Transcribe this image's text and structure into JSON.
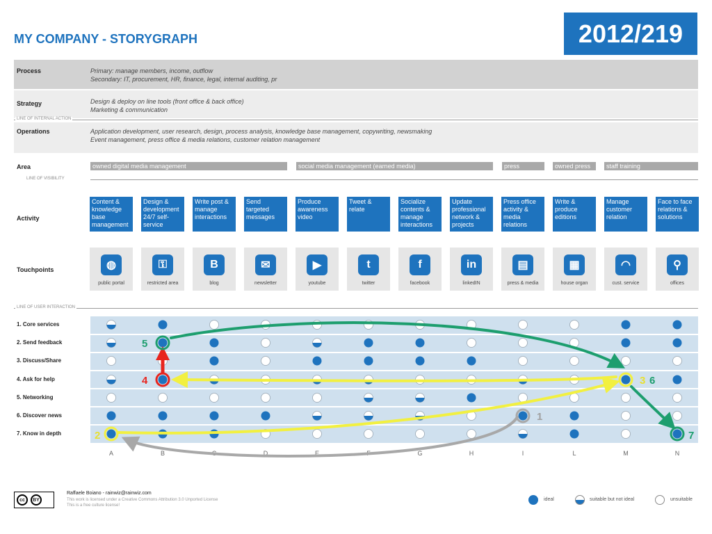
{
  "header": {
    "title": "MY COMPANY - STORYGRAPH",
    "badge": "2012/219"
  },
  "process": {
    "label": "Process",
    "line1": "Primary: manage members, income, outflow",
    "line2": "Secondary: IT, procurement, HR, finance, legal, internal auditing, pr"
  },
  "strategy": {
    "label": "Strategy",
    "line1": "Design & deploy on line tools (front office & back office)",
    "line2": "Marketing & communication"
  },
  "operations": {
    "label": "Operations",
    "line1": "Application development, user research, design, process analysis, knowledge base management, copywriting, newsmaking",
    "line2": "Event management, press office & media relations, customer relation management"
  },
  "lines": {
    "internal_action": "LINE OF INTERNAL ACTION",
    "visibility": "LINE OF VISIBILITY",
    "user_interaction": "LINE OF USER INTERACTION"
  },
  "area": {
    "label": "Area",
    "items": [
      "owned digital media management",
      "social media management (earned media)",
      "press",
      "owned press",
      "staff training"
    ]
  },
  "activity": {
    "label": "Activity",
    "items": [
      "Content & knowledge base management",
      "Design & development 24/7 self-service",
      "Write post & manage interactions",
      "Send targeted messages",
      "Produce awareness video",
      "Tweet & relate",
      "Socialize contents & manage interactions",
      "Update professional network & projects",
      "Press office activity & media relations",
      "Write & produce editions",
      "Manage customer relation",
      "Face to face relations & solutions"
    ]
  },
  "touchpoints": {
    "label": "Touchpoints",
    "items": [
      {
        "label": "public portal",
        "icon": "globe-icon",
        "glyph": "◍"
      },
      {
        "label": "restricted area",
        "icon": "key-icon",
        "glyph": "⚿"
      },
      {
        "label": "blog",
        "icon": "blogger-icon",
        "glyph": "B"
      },
      {
        "label": "newsletter",
        "icon": "envelope-icon",
        "glyph": "✉"
      },
      {
        "label": "youtube",
        "icon": "youtube-icon",
        "glyph": "▶"
      },
      {
        "label": "twitter",
        "icon": "twitter-icon",
        "glyph": "t"
      },
      {
        "label": "facebook",
        "icon": "facebook-icon",
        "glyph": "f"
      },
      {
        "label": "linkedIN",
        "icon": "linkedin-icon",
        "glyph": "in"
      },
      {
        "label": "press & media",
        "icon": "newspaper-icon",
        "glyph": "▤"
      },
      {
        "label": "house organ",
        "icon": "magazine-icon",
        "glyph": "▦"
      },
      {
        "label": "cust. service",
        "icon": "headset-icon",
        "glyph": "◠"
      },
      {
        "label": "offices",
        "icon": "map-pin-icon",
        "glyph": "⚲"
      }
    ]
  },
  "interactions": [
    "1. Core services",
    "2. Send feedback",
    "3. Discuss/Share",
    "4. Ask for help",
    "5. Networking",
    "6. Discover news",
    "7. Know in depth"
  ],
  "columns": [
    "A",
    "B",
    "C",
    "D",
    "E",
    "F",
    "G",
    "H",
    "I",
    "L",
    "M",
    "N"
  ],
  "matrix": [
    [
      "half",
      "full",
      "empty",
      "empty",
      "empty",
      "empty",
      "empty",
      "empty",
      "empty",
      "empty",
      "full",
      "full"
    ],
    [
      "half",
      "full",
      "full",
      "empty",
      "half",
      "full",
      "full",
      "empty",
      "empty",
      "empty",
      "full",
      "full"
    ],
    [
      "empty",
      "empty",
      "full",
      "empty",
      "full",
      "full",
      "full",
      "full",
      "empty",
      "empty",
      "empty",
      "empty"
    ],
    [
      "half",
      "full",
      "half",
      "empty",
      "half",
      "half",
      "empty",
      "empty",
      "half",
      "empty",
      "full",
      "full"
    ],
    [
      "empty",
      "empty",
      "empty",
      "empty",
      "empty",
      "half",
      "half",
      "full",
      "empty",
      "empty",
      "empty",
      "empty"
    ],
    [
      "full",
      "full",
      "full",
      "full",
      "half",
      "half",
      "half",
      "empty",
      "full",
      "full",
      "empty",
      "empty"
    ],
    [
      "full",
      "full",
      "full",
      "empty",
      "empty",
      "empty",
      "empty",
      "empty",
      "half",
      "full",
      "empty",
      "full"
    ]
  ],
  "path_labels": [
    {
      "text": "1",
      "color": "#a0a0a0"
    },
    {
      "text": "2",
      "color": "#e8e030"
    },
    {
      "text": "3",
      "color": "#e8e030"
    },
    {
      "text": "4",
      "color": "#e8251e"
    },
    {
      "text": "5",
      "color": "#1d9e6e"
    },
    {
      "text": "6",
      "color": "#1d9e6e"
    },
    {
      "text": "7",
      "color": "#1d9e6e"
    }
  ],
  "colors": {
    "brand": "#1e73be",
    "green_path": "#1d9e6e",
    "yellow_path": "#f2f040",
    "gray_path": "#a8a8a8",
    "red_path": "#e8251e",
    "grid_bg": "#cfe0ee"
  },
  "footer": {
    "author": "Raffaele Boiano - rainwiz@rainwiz.com",
    "license1": "This work is licensed under a Creative Commons Attribution 3.0 Unported License",
    "license2": "This is a free culture license!",
    "cc": "cc",
    "by": "BY"
  },
  "legend": {
    "ideal": "ideal",
    "suitable": "suitable but not ideal",
    "unsuitable": "unsuitable"
  }
}
